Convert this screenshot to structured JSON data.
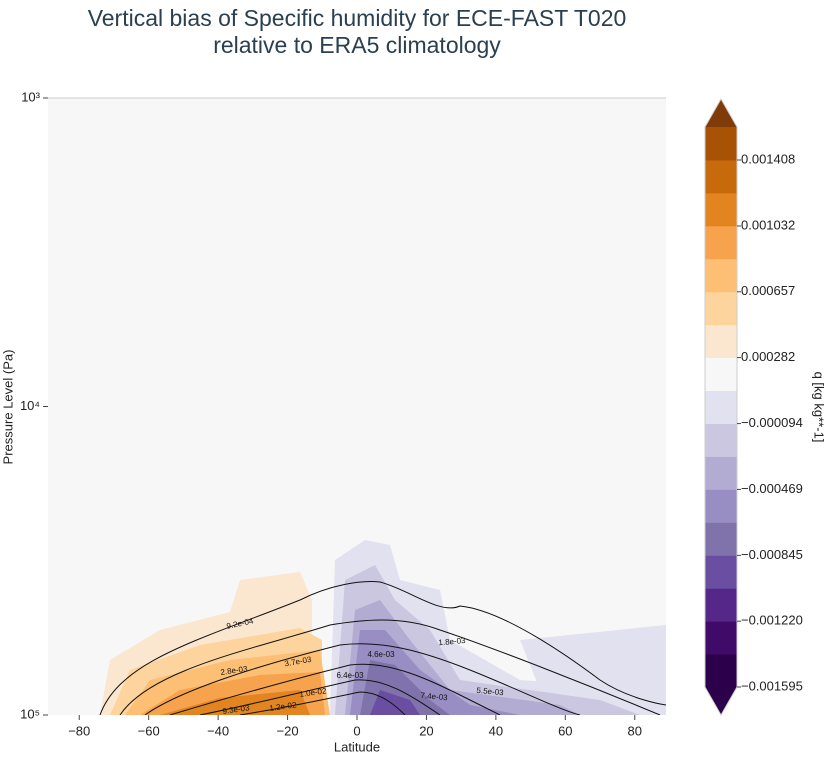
{
  "chart_data": {
    "type": "contourf",
    "title": "Vertical bias of Specific humidity for ECE-FAST T020",
    "subtitle": "relative to ERA5 climatology",
    "x_label": "Latitude",
    "y_label": "Pressure Level (Pa)",
    "xlim": [
      -89,
      89
    ],
    "xticks": [
      {
        "value": -80,
        "label": "−80"
      },
      {
        "value": -60,
        "label": "−60"
      },
      {
        "value": -40,
        "label": "−40"
      },
      {
        "value": -20,
        "label": "−20"
      },
      0,
      20,
      40,
      60,
      80
    ],
    "ylim": [
      1000,
      100000
    ],
    "y_log": true,
    "y_reversed": true,
    "yticks": [
      {
        "value": 1000,
        "label": "10³"
      },
      {
        "value": 10000,
        "label": "10⁴"
      },
      {
        "value": 100000,
        "label": "10⁵"
      }
    ],
    "contour_labels": [
      "9.2e-04",
      "2.8e-03",
      "3.7e-03",
      "1.8e-03",
      "4.6e-03",
      "6.4e-03",
      "1.0e-02",
      "1.2e-02",
      "9.3e-03",
      "7.4e-03",
      "5.5e-03"
    ],
    "colorbar": {
      "label": "q [kg kg**-1]",
      "lim": [
        -0.001595,
        0.001596
      ],
      "ticks": [
        {
          "value": -0.001595,
          "label": "−0.001595"
        },
        {
          "value": -0.00122,
          "label": "−0.001220"
        },
        {
          "value": -0.000845,
          "label": "−0.000845"
        },
        {
          "value": -0.000469,
          "label": "−0.000469"
        },
        {
          "value": -9.4e-05,
          "label": "−0.000094"
        },
        0.000282,
        0.000657,
        0.001032,
        0.001408
      ],
      "colors": [
        "#2d004b",
        "#3f0a68",
        "#542788",
        "#6a4ea1",
        "#8073ac",
        "#998ec3",
        "#b2abd2",
        "#cbc7e1",
        "#e2e1ef",
        "#f7f7f7",
        "#fbe6cf",
        "#fdd49e",
        "#fdbf74",
        "#f7a24c",
        "#e2841f",
        "#c76a0c",
        "#a85206"
      ],
      "extend_colors": [
        "#2d004b",
        "#7f3b08"
      ]
    }
  }
}
